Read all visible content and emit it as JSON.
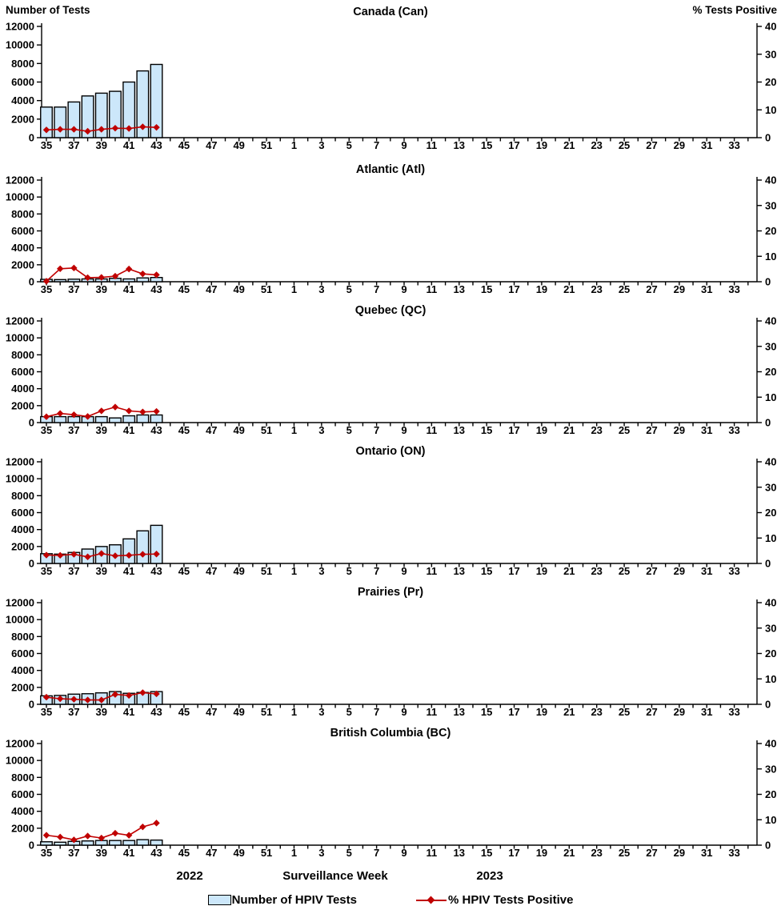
{
  "page": {
    "left_axis_title": "Number of Tests",
    "right_axis_title": "% Tests Positive",
    "x_axis_title": "Surveillance Week",
    "year_left": "2022",
    "year_right": "2023",
    "legend": {
      "bar_label": "Number of HPIV Tests",
      "line_label": "% HPIV Tests Positive"
    }
  },
  "style": {
    "bar_fill": "#cce7fa",
    "bar_stroke": "#000000",
    "line_color": "#c00000"
  },
  "chart_data": {
    "type": "bar+line combo, 6 stacked panels sharing identical axes",
    "x_axis": {
      "label": "Surveillance Week",
      "weeks": [
        35,
        36,
        37,
        38,
        39,
        40,
        41,
        42,
        43,
        44,
        45,
        46,
        47,
        48,
        49,
        50,
        51,
        52,
        1,
        2,
        3,
        4,
        5,
        6,
        7,
        8,
        9,
        10,
        11,
        12,
        13,
        14,
        15,
        16,
        17,
        18,
        19,
        20,
        21,
        22,
        23,
        24,
        25,
        26,
        27,
        28,
        29,
        30,
        31,
        32,
        33,
        34
      ],
      "labeled_ticks": [
        "35",
        "37",
        "39",
        "41",
        "43",
        "45",
        "47",
        "49",
        "51",
        "1",
        "3",
        "5",
        "7",
        "9",
        "11",
        "13",
        "15",
        "17",
        "19",
        "21",
        "23",
        "25",
        "27",
        "29",
        "31",
        "33"
      ],
      "year_note": "weeks 35-52 = 2022, weeks 1-34 = 2023"
    },
    "left_axis": {
      "label": "Number of Tests",
      "min": 0,
      "max": 12000,
      "ticks": [
        0,
        2000,
        4000,
        6000,
        8000,
        10000,
        12000
      ]
    },
    "right_axis": {
      "label": "% Tests Positive",
      "min": 0,
      "max": 40,
      "ticks": [
        0,
        10,
        20,
        30,
        40
      ]
    },
    "data_weeks": [
      35,
      36,
      37,
      38,
      39,
      40,
      41,
      42,
      43
    ],
    "legend": [
      {
        "label": "Number of HPIV Tests",
        "type": "bar",
        "color": "#cce7fa"
      },
      {
        "label": "% HPIV Tests Positive",
        "type": "line",
        "color": "#c00000"
      }
    ],
    "panels": [
      {
        "title": "Canada (Can)",
        "tests": [
          3300,
          3300,
          3850,
          4500,
          4800,
          5000,
          6000,
          7200,
          7900
        ],
        "pct_positive": [
          2.8,
          3.0,
          3.0,
          2.3,
          3.0,
          3.4,
          3.3,
          3.9,
          3.7
        ]
      },
      {
        "title": "Atlantic (Atl)",
        "tests": [
          280,
          250,
          300,
          330,
          330,
          400,
          330,
          450,
          500
        ],
        "pct_positive": [
          0.2,
          5.1,
          5.4,
          1.6,
          1.7,
          2.2,
          5.0,
          3.1,
          2.7
        ]
      },
      {
        "title": "Quebec (QC)",
        "tests": [
          700,
          700,
          700,
          700,
          700,
          550,
          800,
          900,
          900
        ],
        "pct_positive": [
          2.3,
          3.6,
          3.1,
          2.4,
          4.6,
          6.1,
          4.6,
          4.2,
          4.4
        ]
      },
      {
        "title": "Ontario (ON)",
        "tests": [
          1150,
          1100,
          1300,
          1700,
          2000,
          2200,
          2900,
          3850,
          4500
        ],
        "pct_positive": [
          3.3,
          3.2,
          3.6,
          2.6,
          3.9,
          3.0,
          3.2,
          3.6,
          3.7
        ]
      },
      {
        "title": "Prairies (Pr)",
        "tests": [
          1000,
          1050,
          1200,
          1250,
          1350,
          1500,
          1300,
          1400,
          1500
        ],
        "pct_positive": [
          2.8,
          2.2,
          2.0,
          1.7,
          1.7,
          3.9,
          3.5,
          4.6,
          4.1
        ]
      },
      {
        "title": "British Columbia (BC)",
        "tests": [
          400,
          350,
          450,
          500,
          550,
          550,
          550,
          650,
          600
        ],
        "pct_positive": [
          3.9,
          3.2,
          2.1,
          3.6,
          2.8,
          4.7,
          3.9,
          7.2,
          8.7
        ]
      }
    ]
  }
}
